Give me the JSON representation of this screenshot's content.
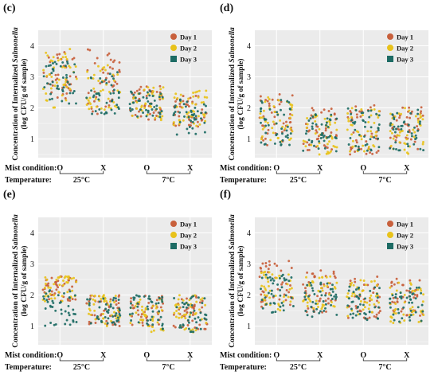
{
  "colors": {
    "day1": "#c8603c",
    "day2": "#e8c21a",
    "day3": "#1d6b64",
    "panel_bg": "#ebebeb",
    "grid": "#ffffff",
    "text": "#111111"
  },
  "ylabel_line1": "Concentration of Internalized",
  "ylabel_italic": "Salmonella",
  "ylabel_line2": "(log CFU/g of sample)",
  "bottom_labels": {
    "mist": "Mist condition:",
    "temp": "Temperature:",
    "mist_values": [
      "O",
      "X",
      "O",
      "X"
    ],
    "temp_values": [
      "25°C",
      "7°C"
    ]
  },
  "legend": [
    "Day 1",
    "Day 2",
    "Day 3"
  ],
  "chart_data": [
    {
      "type": "scatter",
      "label": "(c)",
      "ylim": [
        0.4,
        4.5
      ],
      "yticks": [
        1,
        2,
        3,
        4
      ],
      "groups": [
        {
          "mist": "O",
          "temp": "25°C",
          "day1": [
            2.3,
            3.8
          ],
          "day2": [
            2.0,
            3.9
          ],
          "day3": [
            2.1,
            3.5
          ]
        },
        {
          "mist": "X",
          "temp": "25°C",
          "day1": [
            1.8,
            3.9
          ],
          "day2": [
            1.9,
            3.4
          ],
          "day3": [
            1.8,
            3.2
          ]
        },
        {
          "mist": "O",
          "temp": "7°C",
          "day1": [
            1.6,
            2.7
          ],
          "day2": [
            1.6,
            2.7
          ],
          "day3": [
            1.7,
            2.6
          ]
        },
        {
          "mist": "X",
          "temp": "7°C",
          "day1": [
            1.4,
            2.5
          ],
          "day2": [
            1.4,
            2.6
          ],
          "day3": [
            1.1,
            2.3
          ]
        }
      ]
    },
    {
      "type": "scatter",
      "label": "(d)",
      "ylim": [
        0.4,
        4.5
      ],
      "yticks": [
        1,
        2,
        3,
        4
      ],
      "groups": [
        {
          "mist": "O",
          "temp": "25°C",
          "day1": [
            0.8,
            2.5
          ],
          "day2": [
            0.9,
            2.4
          ],
          "day3": [
            0.8,
            2.3
          ]
        },
        {
          "mist": "X",
          "temp": "25°C",
          "day1": [
            0.6,
            2.0
          ],
          "day2": [
            0.5,
            1.9
          ],
          "day3": [
            0.6,
            1.9
          ]
        },
        {
          "mist": "O",
          "temp": "7°C",
          "day1": [
            0.5,
            2.1
          ],
          "day2": [
            0.6,
            2.0
          ],
          "day3": [
            0.6,
            2.0
          ]
        },
        {
          "mist": "X",
          "temp": "7°C",
          "day1": [
            0.6,
            2.1
          ],
          "day2": [
            0.5,
            2.0
          ],
          "day3": [
            0.5,
            2.0
          ]
        }
      ]
    },
    {
      "type": "scatter",
      "label": "(e)",
      "ylim": [
        0.4,
        4.5
      ],
      "yticks": [
        1,
        2,
        3,
        4
      ],
      "groups": [
        {
          "mist": "O",
          "temp": "25°C",
          "day1": [
            1.8,
            2.6
          ],
          "day2": [
            1.8,
            2.6
          ],
          "day3": [
            1.0,
            2.2
          ]
        },
        {
          "mist": "X",
          "temp": "25°C",
          "day1": [
            1.0,
            2.0
          ],
          "day2": [
            1.0,
            2.0
          ],
          "day3": [
            1.0,
            2.0
          ]
        },
        {
          "mist": "O",
          "temp": "7°C",
          "day1": [
            0.9,
            2.0
          ],
          "day2": [
            0.8,
            1.9
          ],
          "day3": [
            0.9,
            2.0
          ]
        },
        {
          "mist": "X",
          "temp": "7°C",
          "day1": [
            0.9,
            2.0
          ],
          "day2": [
            0.8,
            2.0
          ],
          "day3": [
            0.8,
            2.0
          ]
        }
      ]
    },
    {
      "type": "scatter",
      "label": "(f)",
      "ylim": [
        0.4,
        4.5
      ],
      "yticks": [
        1,
        2,
        3,
        4
      ],
      "groups": [
        {
          "mist": "O",
          "temp": "25°C",
          "day1": [
            1.6,
            3.1
          ],
          "day2": [
            1.5,
            2.8
          ],
          "day3": [
            1.4,
            2.7
          ]
        },
        {
          "mist": "X",
          "temp": "25°C",
          "day1": [
            1.4,
            2.8
          ],
          "day2": [
            1.5,
            2.6
          ],
          "day3": [
            1.3,
            2.4
          ]
        },
        {
          "mist": "O",
          "temp": "7°C",
          "day1": [
            1.2,
            2.6
          ],
          "day2": [
            1.2,
            2.5
          ],
          "day3": [
            1.2,
            2.3
          ]
        },
        {
          "mist": "X",
          "temp": "7°C",
          "day1": [
            1.2,
            2.6
          ],
          "day2": [
            1.1,
            2.4
          ],
          "day3": [
            1.1,
            2.3
          ]
        }
      ]
    }
  ]
}
